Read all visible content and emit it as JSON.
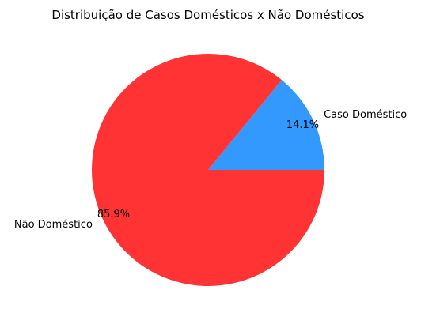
{
  "chart_data": {
    "type": "pie",
    "title": "Distribuição de Casos Domésticos x Não Domésticos",
    "slices": [
      {
        "label": "Caso Doméstico",
        "value": 14.1,
        "pct_label": "14.1%",
        "color": "#3399ff"
      },
      {
        "label": "Não Doméstico",
        "value": 85.9,
        "pct_label": "85.9%",
        "color": "#ff3333"
      }
    ],
    "start_angle": 0,
    "direction": "counterclockwise",
    "legend": "none"
  }
}
